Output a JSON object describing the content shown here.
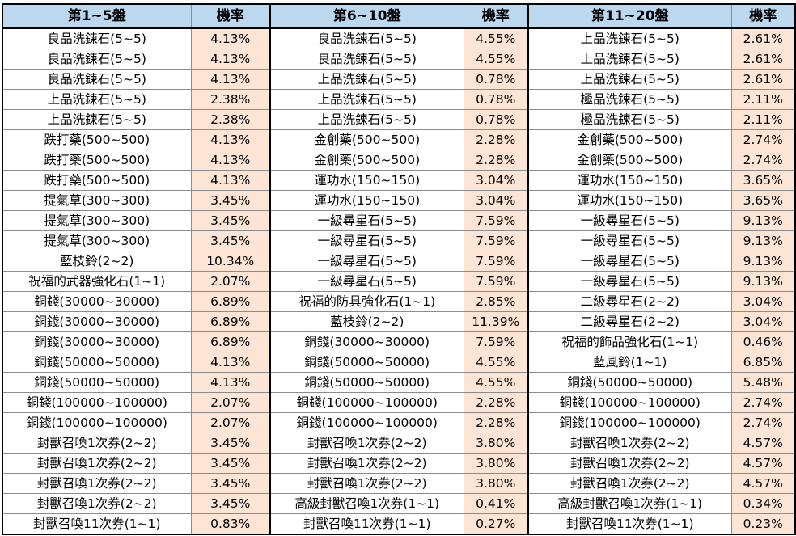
{
  "headers": [
    "第1~5盤",
    "機率",
    "第6~10盤",
    "機率",
    "第11~20盤",
    "機率"
  ],
  "rows": [
    [
      "良品洗鍊石(5~5)",
      "4.13%",
      "良品洗鍊石(5~5)",
      "4.55%",
      "上品洗鍊石(5~5)",
      "2.61%"
    ],
    [
      "良品洗鍊石(5~5)",
      "4.13%",
      "良品洗鍊石(5~5)",
      "4.55%",
      "上品洗鍊石(5~5)",
      "2.61%"
    ],
    [
      "良品洗鍊石(5~5)",
      "4.13%",
      "上品洗鍊石(5~5)",
      "0.78%",
      "上品洗鍊石(5~5)",
      "2.61%"
    ],
    [
      "上品洗鍊石(5~5)",
      "2.38%",
      "上品洗鍊石(5~5)",
      "0.78%",
      "極品洗鍊石(5~5)",
      "2.11%"
    ],
    [
      "上品洗鍊石(5~5)",
      "2.38%",
      "上品洗鍊石(5~5)",
      "0.78%",
      "極品洗鍊石(5~5)",
      "2.11%"
    ],
    [
      "跌打藥(500~500)",
      "4.13%",
      "金創藥(500~500)",
      "2.28%",
      "金創藥(500~500)",
      "2.74%"
    ],
    [
      "跌打藥(500~500)",
      "4.13%",
      "金創藥(500~500)",
      "2.28%",
      "金創藥(500~500)",
      "2.74%"
    ],
    [
      "跌打藥(500~500)",
      "4.13%",
      "運功水(150~150)",
      "3.04%",
      "運功水(150~150)",
      "3.65%"
    ],
    [
      "提氣草(300~300)",
      "3.45%",
      "運功水(150~150)",
      "3.04%",
      "運功水(150~150)",
      "3.65%"
    ],
    [
      "提氣草(300~300)",
      "3.45%",
      "一級尋星石(5~5)",
      "7.59%",
      "一級尋星石(5~5)",
      "9.13%"
    ],
    [
      "提氣草(300~300)",
      "3.45%",
      "一級尋星石(5~5)",
      "7.59%",
      "一級尋星石(5~5)",
      "9.13%"
    ],
    [
      "藍枝鈴(2~2)",
      "10.34%",
      "一級尋星石(5~5)",
      "7.59%",
      "一級尋星石(5~5)",
      "9.13%"
    ],
    [
      "祝福的武器強化石(1~1)",
      "2.07%",
      "一級尋星石(5~5)",
      "7.59%",
      "一級尋星石(5~5)",
      "9.13%"
    ],
    [
      "銅錢(30000~30000)",
      "6.89%",
      "祝福的防具強化石(1~1)",
      "2.85%",
      "二級尋星石(2~2)",
      "3.04%"
    ],
    [
      "銅錢(30000~30000)",
      "6.89%",
      "藍枝鈴(2~2)",
      "11.39%",
      "二級尋星石(2~2)",
      "3.04%"
    ],
    [
      "銅錢(30000~30000)",
      "6.89%",
      "銅錢(30000~30000)",
      "7.59%",
      "祝福的飾品強化石(1~1)",
      "0.46%"
    ],
    [
      "銅錢(50000~50000)",
      "4.13%",
      "銅錢(50000~50000)",
      "4.55%",
      "藍風鈴(1~1)",
      "6.85%"
    ],
    [
      "銅錢(50000~50000)",
      "4.13%",
      "銅錢(50000~50000)",
      "4.55%",
      "銅錢(50000~50000)",
      "5.48%"
    ],
    [
      "銅錢(100000~100000)",
      "2.07%",
      "銅錢(100000~100000)",
      "2.28%",
      "銅錢(100000~100000)",
      "2.74%"
    ],
    [
      "銅錢(100000~100000)",
      "2.07%",
      "銅錢(100000~100000)",
      "2.28%",
      "銅錢(100000~100000)",
      "2.74%"
    ],
    [
      "封獸召喚1次券(2~2)",
      "3.45%",
      "封獸召喚1次券(2~2)",
      "3.80%",
      "封獸召喚1次券(2~2)",
      "4.57%"
    ],
    [
      "封獸召喚1次券(2~2)",
      "3.45%",
      "封獸召喚1次券(2~2)",
      "3.80%",
      "封獸召喚1次券(2~2)",
      "4.57%"
    ],
    [
      "封獸召喚1次券(2~2)",
      "3.45%",
      "封獸召喚1次券(2~2)",
      "3.80%",
      "封獸召喚1次券(2~2)",
      "4.57%"
    ],
    [
      "封獸召喚1次券(2~2)",
      "3.45%",
      "高級封獸召喚1次券(1~1)",
      "0.41%",
      "高級封獸召喚1次券(1~1)",
      "0.34%"
    ],
    [
      "封獸召喚11次券(1~1)",
      "0.83%",
      "封獸召喚11次券(1~1)",
      "0.27%",
      "封獸召喚11次券(1~1)",
      "0.23%"
    ]
  ]
}
